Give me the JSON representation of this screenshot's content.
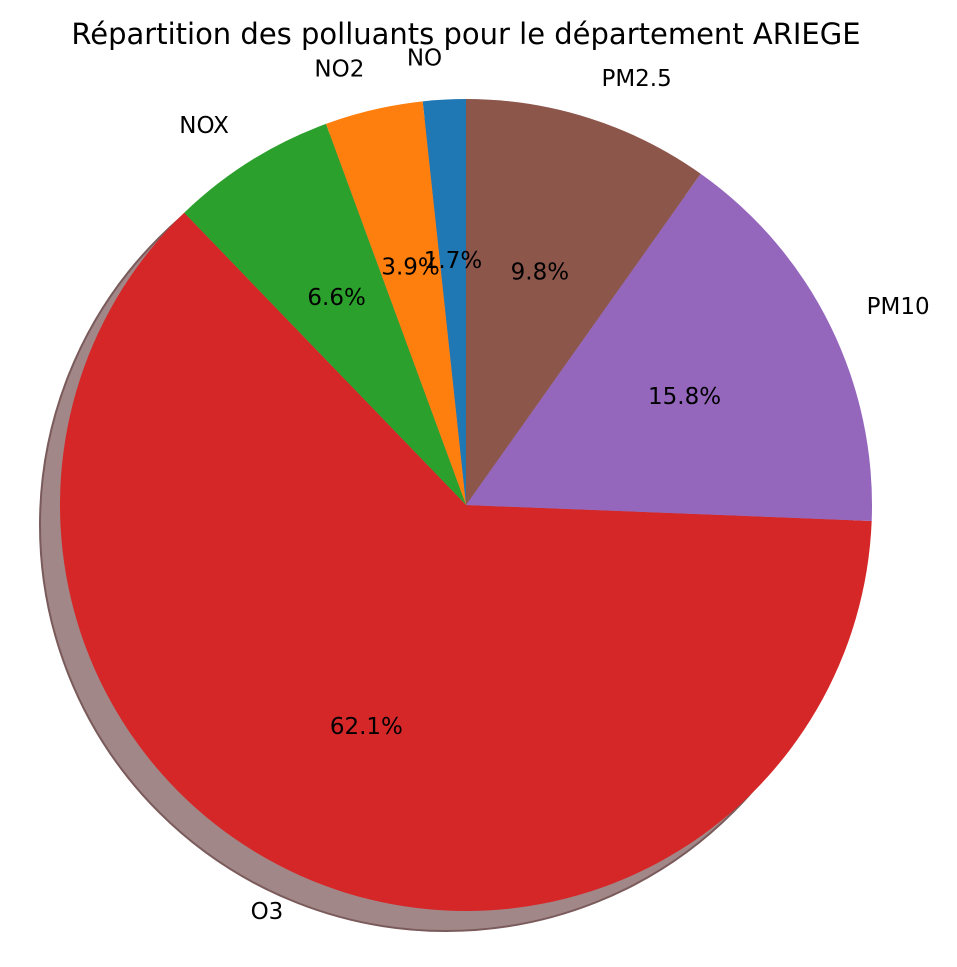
{
  "chart_data": {
    "type": "pie",
    "title": "Répartition des polluants pour le département ARIEGE",
    "labels": [
      "NO",
      "NO2",
      "NOX",
      "O3",
      "PM10",
      "PM2.5"
    ],
    "values": [
      1.7,
      3.9,
      6.6,
      62.1,
      15.8,
      9.8
    ],
    "percent_labels": [
      "1.7%",
      "3.9%",
      "6.6%",
      "62.1%",
      "15.8%",
      "9.8%"
    ],
    "colors": [
      "#1f77b4",
      "#ff7f0e",
      "#2ca02c",
      "#d62728",
      "#9467bd",
      "#8c564b"
    ],
    "start_angle": 90,
    "direction": "counterclockwise",
    "shadow": true,
    "shadow_color": "#a18787"
  }
}
